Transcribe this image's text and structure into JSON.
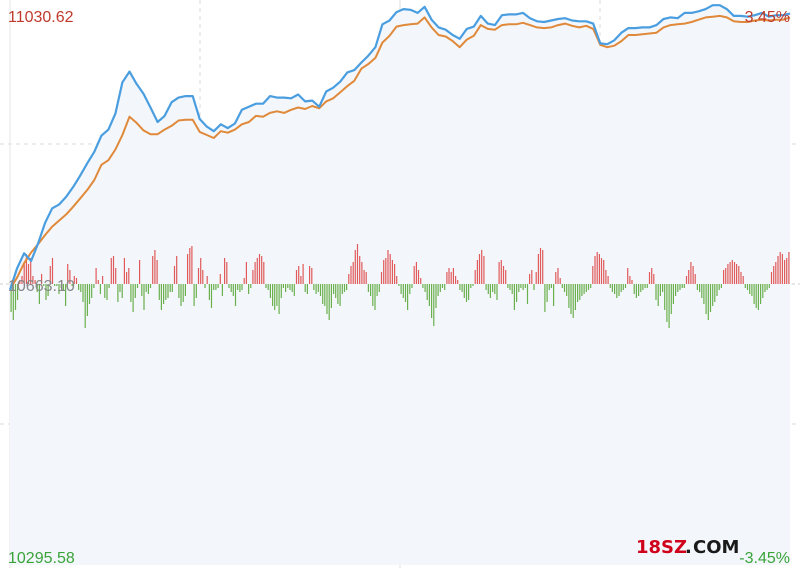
{
  "chart_data": {
    "type": "line",
    "title": "",
    "xlabel": "",
    "ylabel": "",
    "grid": true,
    "ylim": [
      10295.58,
      11030.62
    ],
    "pct_range": [
      -3.45,
      3.45
    ],
    "y_labels": {
      "top": "11030.62",
      "mid": "10663.10",
      "bottom": "10295.58",
      "pct_top": "3.45%",
      "pct_bottom": "-3.45%"
    },
    "colors": {
      "index_line": "#4a9ee0",
      "avg_line": "#e0893a",
      "up_bar": "#e05a5a",
      "down_bar": "#6ab04c",
      "up_text": "#c0392b",
      "down_text": "#3aa33a",
      "area_fill": "#f3f7fc",
      "grid": "#dcdcdc"
    },
    "series": [
      {
        "values": [
          10656,
          10684,
          10704,
          10694,
          10717,
          10744,
          10763,
          10768,
          10778,
          10791,
          10806,
          10822,
          10837,
          10858,
          10866,
          10887,
          10928,
          10942,
          10926,
          10913,
          10895,
          10876,
          10884,
          10902,
          10908,
          10910,
          10910,
          10880,
          10870,
          10864,
          10873,
          10868,
          10874,
          10892,
          10896,
          10900,
          10900,
          10910,
          10908,
          10908,
          10907,
          10912,
          10903,
          10904,
          10896,
          10916,
          10921,
          10929,
          10941,
          10944,
          10954,
          10963,
          10974,
          11004,
          11009,
          11020,
          11024,
          11023,
          11019,
          11027,
          11010,
          11000,
          10997,
          10990,
          10985,
          10998,
          11001,
          11015,
          11005,
          11003,
          11016,
          11017,
          11017,
          11019,
          11012,
          11008,
          11007,
          11009,
          11011,
          11012,
          11009,
          11008,
          11008,
          11005,
          10979,
          10978,
          10983,
          10993,
          10999,
          10999,
          11000,
          11000,
          11003,
          11011,
          11013,
          11012,
          11019,
          11019,
          11021,
          11024,
          11029,
          11029,
          11024,
          11015,
          11015,
          11014,
          11016,
          11019,
          11014,
          11016,
          11016,
          11018
        ]
      },
      {
        "values": [
          10657,
          10672,
          10691,
          10705,
          10716,
          10728,
          10739,
          10747,
          10755,
          10765,
          10776,
          10787,
          10800,
          10820,
          10826,
          10840,
          10859,
          10883,
          10875,
          10865,
          10860,
          10860,
          10866,
          10871,
          10878,
          10879,
          10879,
          10863,
          10859,
          10855,
          10864,
          10862,
          10866,
          10873,
          10876,
          10884,
          10883,
          10888,
          10890,
          10888,
          10892,
          10895,
          10893,
          10897,
          10894,
          10903,
          10907,
          10915,
          10923,
          10930,
          10946,
          10952,
          10960,
          10980,
          10989,
          11001,
          11003,
          11004,
          11005,
          11013,
          11000,
          10990,
          10988,
          10982,
          10974,
          10984,
          10989,
          11003,
          10998,
          10997,
          11003,
          11004,
          11004,
          11006,
          11003,
          11000,
          10999,
          11000,
          11003,
          11005,
          11002,
          11000,
          11002,
          10998,
          10977,
          10974,
          10976,
          10982,
          10990,
          10990,
          10991,
          10992,
          10993,
          11000,
          11003,
          11004,
          11005,
          11007,
          11010,
          11013,
          11014,
          11015,
          11013,
          11008,
          11007,
          11007,
          11009,
          11010,
          11009,
          11010,
          11010,
          11013
        ]
      }
    ],
    "bars": [
      -28,
      -36,
      -26,
      -16,
      4,
      8,
      22,
      30,
      20,
      26,
      8,
      4,
      -8,
      -20,
      10,
      -2,
      -16,
      -12,
      18,
      26,
      -2,
      -2,
      -10,
      -4,
      -6,
      -22,
      20,
      14,
      -2,
      8,
      6,
      -6,
      -8,
      -18,
      -44,
      -32,
      -20,
      -14,
      -4,
      16,
      4,
      -10,
      8,
      -14,
      -16,
      -4,
      26,
      28,
      16,
      -18,
      -8,
      -14,
      26,
      12,
      16,
      -18,
      -28,
      -14,
      -4,
      24,
      -12,
      -26,
      -8,
      -10,
      -4,
      28,
      34,
      24,
      -16,
      -26,
      -20,
      -16,
      -14,
      -8,
      -8,
      18,
      28,
      -14,
      -22,
      -18,
      -12,
      30,
      36,
      38,
      -22,
      -14,
      16,
      26,
      14,
      -4,
      8,
      -16,
      -24,
      -6,
      -6,
      -4,
      10,
      -12,
      26,
      22,
      -4,
      -8,
      -12,
      -22,
      -6,
      -8,
      -6,
      6,
      22,
      -10,
      -4,
      14,
      22,
      26,
      30,
      28,
      22,
      -4,
      -6,
      -14,
      -22,
      -26,
      -22,
      -30,
      -14,
      -4,
      -8,
      -4,
      -6,
      -8,
      -12,
      14,
      18,
      8,
      20,
      -8,
      -10,
      18,
      16,
      -6,
      -10,
      -8,
      -12,
      -20,
      -22,
      -30,
      -36,
      -24,
      -10,
      -14,
      -20,
      -22,
      -10,
      -8,
      -6,
      10,
      18,
      22,
      34,
      40,
      28,
      22,
      14,
      12,
      -8,
      -12,
      -22,
      -26,
      -12,
      -8,
      12,
      24,
      26,
      34,
      30,
      24,
      20,
      8,
      -2,
      -10,
      -14,
      -18,
      -26,
      -10,
      -4,
      18,
      22,
      14,
      6,
      -4,
      -8,
      -16,
      -22,
      -34,
      -42,
      -24,
      -12,
      -8,
      -4,
      -6,
      12,
      16,
      12,
      16,
      8,
      4,
      -6,
      -8,
      -14,
      -18,
      -16,
      -4,
      -2,
      14,
      24,
      30,
      34,
      28,
      -6,
      -10,
      -14,
      -8,
      -10,
      -16,
      22,
      24,
      18,
      14,
      -4,
      -6,
      -10,
      -26,
      -18,
      -8,
      -4,
      -6,
      -4,
      -20,
      10,
      14,
      -6,
      12,
      30,
      36,
      34,
      -28,
      -18,
      -6,
      -4,
      -22,
      12,
      16,
      6,
      -4,
      -8,
      -12,
      -24,
      -30,
      -34,
      -26,
      -18,
      -16,
      -12,
      -10,
      -8,
      -6,
      -4,
      18,
      28,
      32,
      30,
      26,
      24,
      14,
      8,
      -4,
      -8,
      -10,
      -14,
      -12,
      -8,
      -6,
      -4,
      16,
      8,
      4,
      -10,
      -14,
      -12,
      -8,
      -6,
      -4,
      -4,
      12,
      16,
      10,
      -16,
      -22,
      -12,
      -8,
      -26,
      -38,
      -44,
      -30,
      -20,
      -12,
      -8,
      -6,
      -4,
      -4,
      8,
      14,
      22,
      18,
      10,
      -6,
      -8,
      -14,
      -20,
      -30,
      -36,
      -28,
      -22,
      -18,
      -12,
      -6,
      -4,
      14,
      16,
      20,
      22,
      24,
      22,
      20,
      18,
      12,
      8,
      -4,
      -6,
      -10,
      -12,
      -20,
      -24,
      -26,
      -20,
      -14,
      -8,
      -6,
      -4,
      12,
      18,
      22,
      28,
      32,
      30,
      24,
      26,
      32
    ]
  },
  "watermark": {
    "text_main": "18SZ",
    "text_dot": ".",
    "text_tail": "COM"
  }
}
